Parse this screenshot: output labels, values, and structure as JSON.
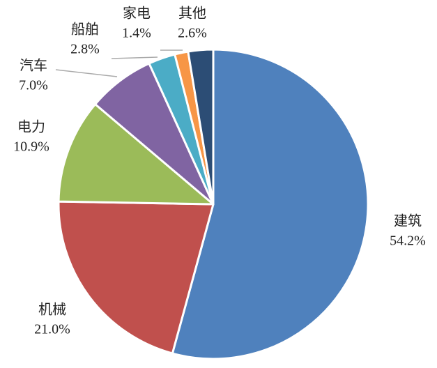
{
  "chart_data": {
    "type": "pie",
    "categories": [
      "建筑",
      "机械",
      "电力",
      "汽车",
      "船舶",
      "家电",
      "其他"
    ],
    "values": [
      54.2,
      21.0,
      10.9,
      7.0,
      2.8,
      1.4,
      2.6
    ],
    "value_labels": [
      "54.2%",
      "21.0%",
      "10.9%",
      "7.0%",
      "2.8%",
      "1.4%",
      "2.6%"
    ],
    "colors": [
      "#4f81bd",
      "#c0504d",
      "#9bbb59",
      "#8064a2",
      "#4bacc6",
      "#f79646",
      "#2c4d75"
    ]
  }
}
